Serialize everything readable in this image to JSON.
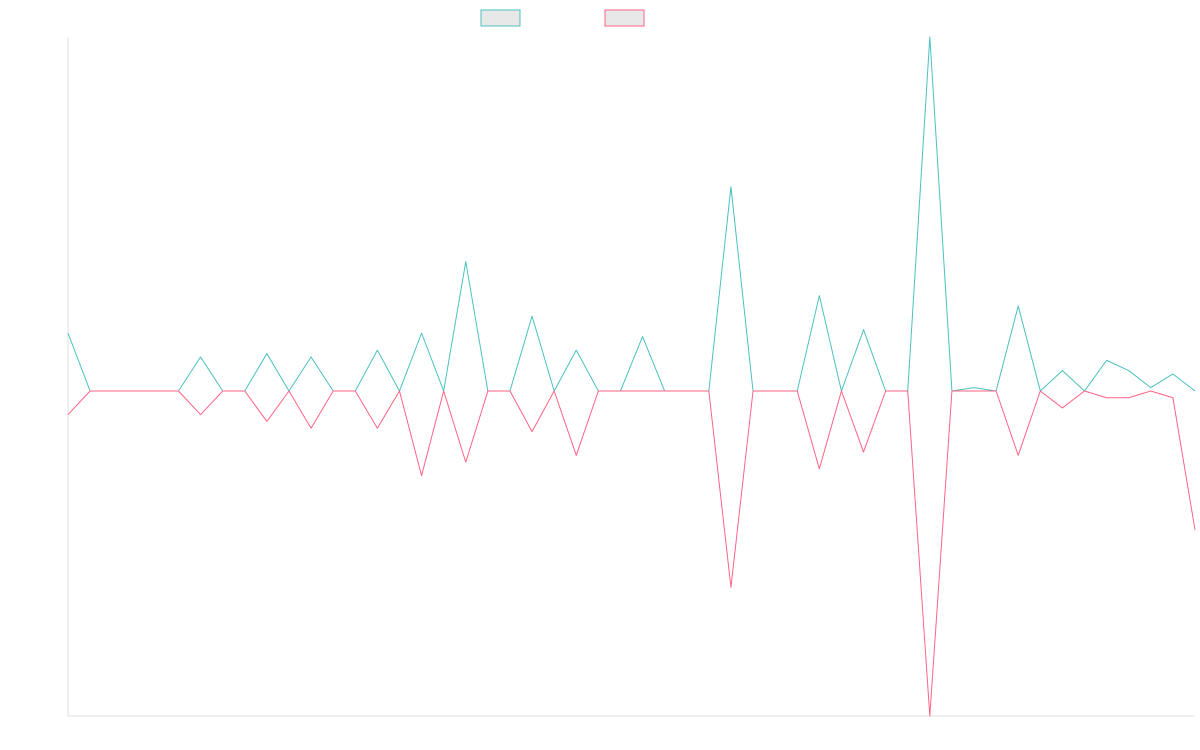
{
  "chart_data": {
    "type": "line",
    "title": "",
    "xlabel": "",
    "ylabel": "",
    "legend_position": "top-center",
    "grid": false,
    "y_baseline": 0,
    "ylim": [
      -100,
      100
    ],
    "x_count": 52,
    "series": [
      {
        "color": "#4bc0c0",
        "points": [
          {
            "x": 0,
            "y": 17
          },
          {
            "x": 1,
            "y": 0
          },
          {
            "x": 5,
            "y": 0
          },
          {
            "x": 6,
            "y": 10
          },
          {
            "x": 7,
            "y": 0
          },
          {
            "x": 8,
            "y": 0
          },
          {
            "x": 9,
            "y": 11
          },
          {
            "x": 10,
            "y": 0
          },
          {
            "x": 11,
            "y": 10
          },
          {
            "x": 12,
            "y": 0
          },
          {
            "x": 13,
            "y": 0
          },
          {
            "x": 14,
            "y": 12
          },
          {
            "x": 15,
            "y": 0
          },
          {
            "x": 16,
            "y": 17
          },
          {
            "x": 17,
            "y": 0
          },
          {
            "x": 18,
            "y": 38
          },
          {
            "x": 19,
            "y": 0
          },
          {
            "x": 20,
            "y": 0
          },
          {
            "x": 21,
            "y": 22
          },
          {
            "x": 22,
            "y": 0
          },
          {
            "x": 23,
            "y": 12
          },
          {
            "x": 24,
            "y": 0
          },
          {
            "x": 25,
            "y": 0
          },
          {
            "x": 26,
            "y": 16
          },
          {
            "x": 27,
            "y": 0
          },
          {
            "x": 28,
            "y": 0
          },
          {
            "x": 29,
            "y": 0
          },
          {
            "x": 30,
            "y": 60
          },
          {
            "x": 31,
            "y": 0
          },
          {
            "x": 32,
            "y": 0
          },
          {
            "x": 33,
            "y": 0
          },
          {
            "x": 34,
            "y": 28
          },
          {
            "x": 35,
            "y": 0
          },
          {
            "x": 36,
            "y": 18
          },
          {
            "x": 37,
            "y": 0
          },
          {
            "x": 38,
            "y": 0
          },
          {
            "x": 39,
            "y": 104
          },
          {
            "x": 40,
            "y": 0
          },
          {
            "x": 41,
            "y": 1
          },
          {
            "x": 42,
            "y": 0
          },
          {
            "x": 43,
            "y": 25
          },
          {
            "x": 44,
            "y": 0
          },
          {
            "x": 45,
            "y": 6
          },
          {
            "x": 46,
            "y": 0
          },
          {
            "x": 47,
            "y": 9
          },
          {
            "x": 48,
            "y": 6
          },
          {
            "x": 49,
            "y": 1
          },
          {
            "x": 50,
            "y": 5
          },
          {
            "x": 51,
            "y": 0
          }
        ]
      },
      {
        "color": "#ff6384",
        "points": [
          {
            "x": 0,
            "y": -7
          },
          {
            "x": 1,
            "y": 0
          },
          {
            "x": 5,
            "y": 0
          },
          {
            "x": 6,
            "y": -7
          },
          {
            "x": 7,
            "y": 0
          },
          {
            "x": 8,
            "y": 0
          },
          {
            "x": 9,
            "y": -9
          },
          {
            "x": 10,
            "y": 0
          },
          {
            "x": 11,
            "y": -11
          },
          {
            "x": 12,
            "y": 0
          },
          {
            "x": 13,
            "y": 0
          },
          {
            "x": 14,
            "y": -11
          },
          {
            "x": 15,
            "y": 0
          },
          {
            "x": 16,
            "y": -25
          },
          {
            "x": 17,
            "y": 0
          },
          {
            "x": 18,
            "y": -21
          },
          {
            "x": 19,
            "y": 0
          },
          {
            "x": 20,
            "y": 0
          },
          {
            "x": 21,
            "y": -12
          },
          {
            "x": 22,
            "y": 0
          },
          {
            "x": 23,
            "y": -19
          },
          {
            "x": 24,
            "y": 0
          },
          {
            "x": 25,
            "y": 0
          },
          {
            "x": 26,
            "y": 0
          },
          {
            "x": 27,
            "y": 0
          },
          {
            "x": 28,
            "y": 0
          },
          {
            "x": 29,
            "y": 0
          },
          {
            "x": 30,
            "y": -58
          },
          {
            "x": 31,
            "y": 0
          },
          {
            "x": 32,
            "y": 0
          },
          {
            "x": 33,
            "y": 0
          },
          {
            "x": 34,
            "y": -23
          },
          {
            "x": 35,
            "y": 0
          },
          {
            "x": 36,
            "y": -18
          },
          {
            "x": 37,
            "y": 0
          },
          {
            "x": 38,
            "y": 0
          },
          {
            "x": 39,
            "y": -96
          },
          {
            "x": 40,
            "y": 0
          },
          {
            "x": 41,
            "y": 0
          },
          {
            "x": 42,
            "y": 0
          },
          {
            "x": 43,
            "y": -19
          },
          {
            "x": 44,
            "y": 0
          },
          {
            "x": 45,
            "y": -5
          },
          {
            "x": 46,
            "y": 0
          },
          {
            "x": 47,
            "y": -2
          },
          {
            "x": 48,
            "y": -2
          },
          {
            "x": 49,
            "y": 0
          },
          {
            "x": 50,
            "y": -2
          },
          {
            "x": 51,
            "y": -41
          }
        ]
      }
    ]
  }
}
